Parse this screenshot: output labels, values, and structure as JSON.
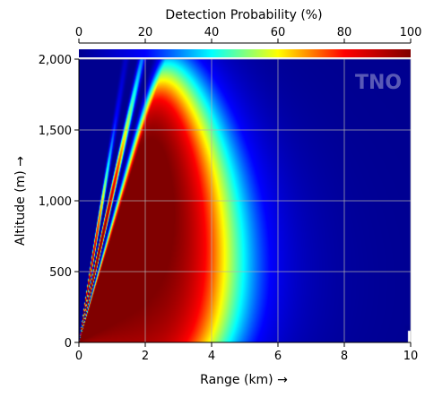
{
  "chart_data": {
    "type": "heatmap",
    "title": "Detection Probability (%)",
    "xlabel": "Range (km) →",
    "ylabel": "Altitude (m) →",
    "x_range": [
      0,
      10
    ],
    "y_range": [
      0,
      2000
    ],
    "x_ticks": [
      "0",
      "2",
      "4",
      "6",
      "8",
      "10"
    ],
    "x_tick_values": [
      0,
      2,
      4,
      6,
      8,
      10
    ],
    "y_ticks": [
      "0",
      "500",
      "1,000",
      "1,500",
      "2,000"
    ],
    "y_tick_values": [
      0,
      500,
      1000,
      1500,
      2000
    ],
    "colorbar": {
      "range": [
        0,
        100
      ],
      "ticks": [
        "0",
        "20",
        "40",
        "60",
        "80",
        "100"
      ],
      "tick_values": [
        0,
        20,
        40,
        60,
        80,
        100
      ],
      "colormap": "jet",
      "placement": "top"
    },
    "grid": true,
    "watermark": "TNO",
    "summary": {
      "max_probability_near_range_km": [
        0,
        3
      ],
      "max_probability_below_altitude_m": 1000,
      "detection_edge_at_low_altitude_km": 9.8,
      "main_lobe_peak_range_km": 5,
      "main_lobe_peak_altitude_m": 1700
    }
  },
  "colors": {
    "grid": "#b0b0b0",
    "axis": "#000000",
    "stops": [
      "#00008f",
      "#0000ff",
      "#00ffff",
      "#ffff00",
      "#ff0000",
      "#800000"
    ]
  }
}
